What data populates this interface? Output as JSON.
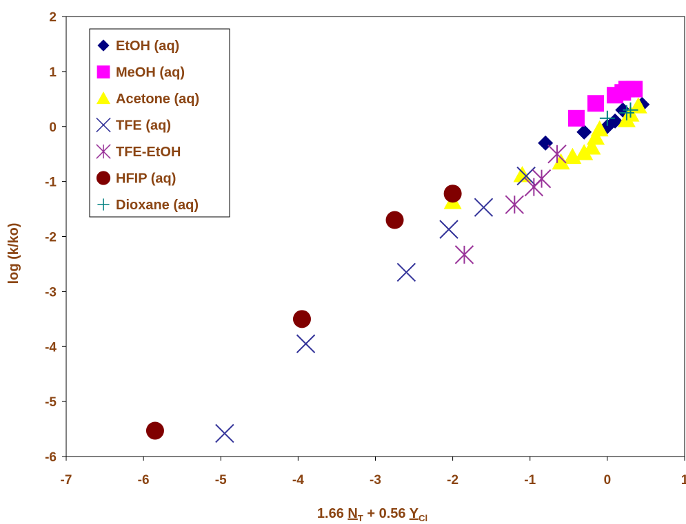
{
  "chart_data": {
    "type": "scatter",
    "title": "",
    "xlabel": "1.66 NT + 0.56 YCl",
    "xlabel_parts": {
      "coef1": "1.66 ",
      "var1": "N",
      "sub1": "T",
      "coef2": " + 0.56 ",
      "var2": "Y",
      "sub2": "Cl"
    },
    "ylabel": "log (k/ko)",
    "xlim": [
      -7,
      1
    ],
    "ylim": [
      -6,
      2
    ],
    "xticks": [
      -7,
      -6,
      -5,
      -4,
      -3,
      -2,
      -1,
      0,
      1
    ],
    "yticks": [
      -6,
      -5,
      -4,
      -3,
      -2,
      -1,
      0,
      1,
      2
    ],
    "grid": false,
    "legend_position": "top-left",
    "series": [
      {
        "name": "EtOH (aq)",
        "marker": "diamond",
        "color": "#000080",
        "points": [
          [
            -0.8,
            -0.3
          ],
          [
            -0.3,
            -0.1
          ],
          [
            0.0,
            0.0
          ],
          [
            0.1,
            0.1
          ],
          [
            0.2,
            0.3
          ],
          [
            0.45,
            0.4
          ]
        ]
      },
      {
        "name": "MeOH (aq)",
        "marker": "square",
        "color": "#FF00FF",
        "points": [
          [
            -0.4,
            0.15
          ],
          [
            -0.15,
            0.42
          ],
          [
            0.1,
            0.57
          ],
          [
            0.2,
            0.62
          ],
          [
            0.25,
            0.68
          ],
          [
            0.35,
            0.68
          ]
        ]
      },
      {
        "name": "Acetone (aq)",
        "marker": "triangle",
        "color": "#FFFF00",
        "points": [
          [
            -2.0,
            -1.37
          ],
          [
            -1.1,
            -0.88
          ],
          [
            -0.6,
            -0.65
          ],
          [
            -0.45,
            -0.55
          ],
          [
            -0.3,
            -0.48
          ],
          [
            -0.2,
            -0.38
          ],
          [
            -0.15,
            -0.2
          ],
          [
            -0.1,
            -0.05
          ],
          [
            0.25,
            0.12
          ],
          [
            0.3,
            0.22
          ],
          [
            0.4,
            0.37
          ]
        ]
      },
      {
        "name": "TFE (aq)",
        "marker": "x",
        "color": "#333399",
        "points": [
          [
            -4.95,
            -5.58
          ],
          [
            -3.9,
            -3.95
          ],
          [
            -2.6,
            -2.65
          ],
          [
            -2.05,
            -1.87
          ],
          [
            -1.6,
            -1.47
          ],
          [
            -1.05,
            -0.9
          ]
        ]
      },
      {
        "name": "TFE-EtOH",
        "marker": "asterisk",
        "color": "#993399",
        "points": [
          [
            -1.85,
            -2.33
          ],
          [
            -1.2,
            -1.42
          ],
          [
            -0.95,
            -1.1
          ],
          [
            -0.85,
            -0.95
          ],
          [
            -0.65,
            -0.5
          ]
        ]
      },
      {
        "name": "HFIP (aq)",
        "marker": "circle",
        "color": "#800000",
        "points": [
          [
            -5.85,
            -5.53
          ],
          [
            -3.95,
            -3.5
          ],
          [
            -2.75,
            -1.7
          ],
          [
            -2.0,
            -1.22
          ]
        ]
      },
      {
        "name": "Dioxane (aq)",
        "marker": "plus",
        "color": "#008080",
        "points": [
          [
            0.0,
            0.15
          ],
          [
            0.25,
            0.25
          ],
          [
            0.3,
            0.3
          ]
        ]
      }
    ]
  }
}
